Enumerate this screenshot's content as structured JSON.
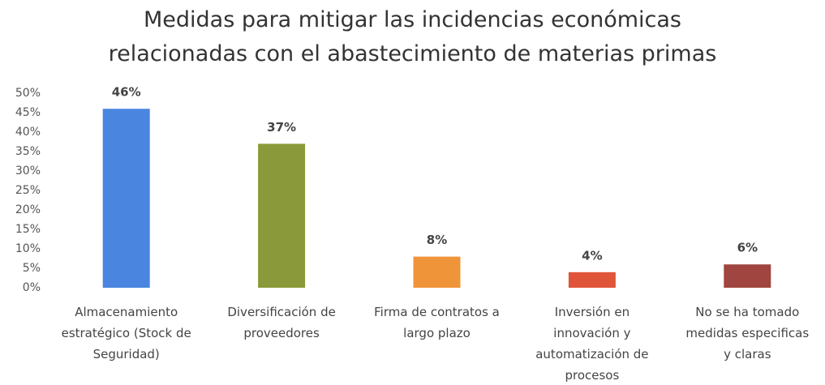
{
  "chart_data": {
    "type": "bar",
    "title": "Medidas para mitigar las incidencias económicas\nrelacionadas con el abastecimiento de materias primas",
    "categories": [
      "Almacenamiento\nestratégico (Stock de\nSeguridad)",
      "Diversificación de\nproveedores",
      "Firma de contratos a\nlargo plazo",
      "Inversión en\ninnovación y\nautomatización de\nprocesos",
      "No se ha tomado\nmedidas especificas\ny claras"
    ],
    "values": [
      46,
      37,
      8,
      4,
      6
    ],
    "value_labels": [
      "46%",
      "37%",
      "8%",
      "4%",
      "6%"
    ],
    "colors": [
      "#4a86e0",
      "#8a9a3a",
      "#f0943a",
      "#e0553a",
      "#a0453f"
    ],
    "ylim": [
      0,
      50
    ],
    "yticks": [
      {
        "value": 0,
        "label": "0%"
      },
      {
        "value": 5,
        "label": "5%"
      },
      {
        "value": 10,
        "label": "10%"
      },
      {
        "value": 15,
        "label": "15%"
      },
      {
        "value": 20,
        "label": "20%"
      },
      {
        "value": 25,
        "label": "25%"
      },
      {
        "value": 30,
        "label": "30%"
      },
      {
        "value": 35,
        "label": "35%"
      },
      {
        "value": 40,
        "label": "40%"
      },
      {
        "value": 45,
        "label": "45%"
      },
      {
        "value": 50,
        "label": "50%"
      }
    ],
    "grid": false
  }
}
